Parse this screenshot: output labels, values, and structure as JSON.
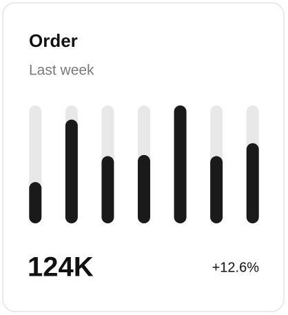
{
  "chart_data": {
    "type": "bar",
    "title": "Order",
    "subtitle": "Last week",
    "categories": [
      null,
      null,
      null,
      null,
      null,
      null,
      null
    ],
    "values": [
      35,
      88,
      57,
      58,
      100,
      57,
      68
    ],
    "color": "#1a1a1a",
    "track_color": "#e8e8e8",
    "ylim": [
      0,
      100
    ],
    "total": "124K",
    "change": "+12.6%"
  }
}
